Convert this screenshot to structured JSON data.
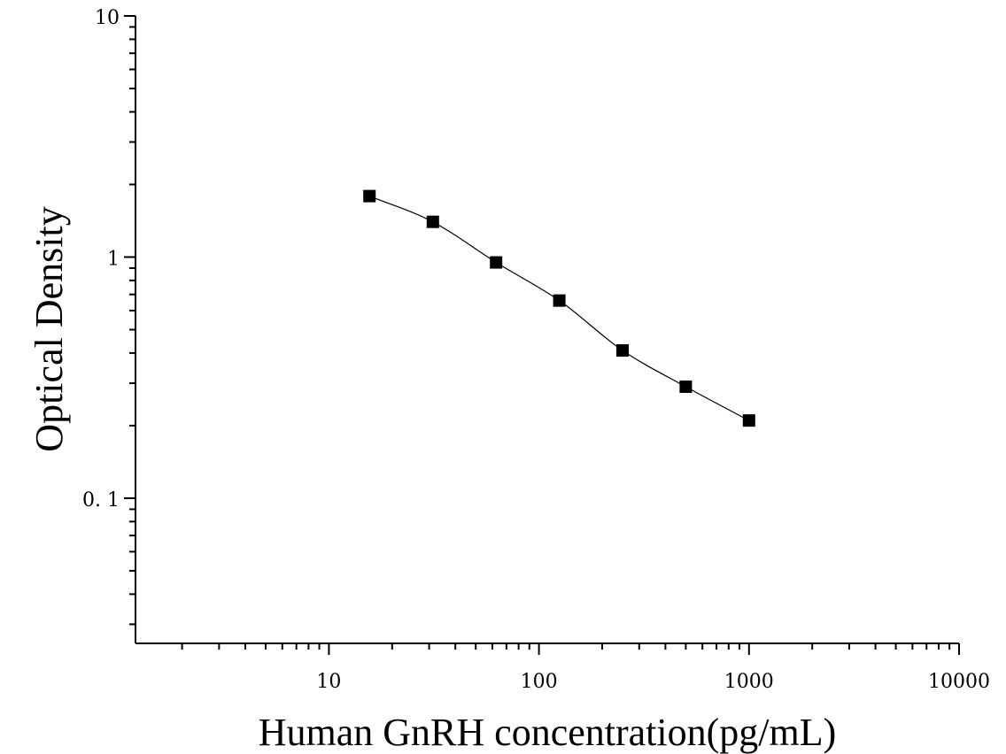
{
  "chart_data": {
    "type": "scatter",
    "xlabel": "Human GnRH concentration(pg/mL)",
    "ylabel": "Optical Density",
    "x_scale": "log",
    "y_scale": "log",
    "xlim": [
      1.2,
      10000
    ],
    "ylim": [
      0.025,
      10
    ],
    "x_ticks": [
      {
        "value": 10,
        "label": "10"
      },
      {
        "value": 100,
        "label": "100"
      },
      {
        "value": 1000,
        "label": "1000"
      },
      {
        "value": 10000,
        "label": "10000"
      }
    ],
    "y_ticks": [
      {
        "value": 0.1,
        "label": "0. 1"
      },
      {
        "value": 1,
        "label": "1"
      },
      {
        "value": 10,
        "label": "10"
      }
    ],
    "grid": false,
    "marker": "square",
    "fit_curve": "smooth",
    "colors": {
      "marker": "#000000",
      "curve": "#000000",
      "axis": "#000000"
    },
    "series": [
      {
        "x": [
          15.6,
          31.25,
          62.5,
          125,
          250,
          500,
          1000
        ],
        "y": [
          1.79,
          1.4,
          0.95,
          0.66,
          0.41,
          0.29,
          0.21
        ]
      }
    ]
  }
}
